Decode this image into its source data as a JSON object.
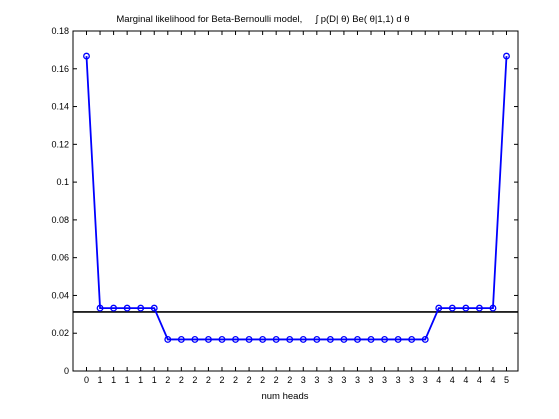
{
  "chart_data": {
    "type": "line",
    "title": "Marginal likelihood for Beta-Bernoulli model,     ∫ p(D| θ) Be( θ|1,1) d θ",
    "xlabel": "num heads",
    "ylabel": "",
    "ylim": [
      0,
      0.18
    ],
    "yticks": [
      "0",
      "0.02",
      "0.04",
      "0.06",
      "0.08",
      "0.1",
      "0.12",
      "0.14",
      "0.16",
      "0.18"
    ],
    "categories": [
      "0",
      "1",
      "1",
      "1",
      "1",
      "1",
      "2",
      "2",
      "2",
      "2",
      "2",
      "2",
      "2",
      "2",
      "2",
      "2",
      "3",
      "3",
      "3",
      "3",
      "3",
      "3",
      "3",
      "3",
      "3",
      "3",
      "4",
      "4",
      "4",
      "4",
      "4",
      "5"
    ],
    "series": [
      {
        "color": "#0000ff",
        "marker": "circle",
        "values": [
          0.1667,
          0.0333,
          0.0333,
          0.0333,
          0.0333,
          0.0333,
          0.0167,
          0.0167,
          0.0167,
          0.0167,
          0.0167,
          0.0167,
          0.0167,
          0.0167,
          0.0167,
          0.0167,
          0.0167,
          0.0167,
          0.0167,
          0.0167,
          0.0167,
          0.0167,
          0.0167,
          0.0167,
          0.0167,
          0.0167,
          0.0333,
          0.0333,
          0.0333,
          0.0333,
          0.0333,
          0.1667
        ]
      }
    ],
    "reference_line": {
      "y": 0.03125,
      "color": "#000000"
    },
    "grid": false,
    "legend": "none"
  }
}
